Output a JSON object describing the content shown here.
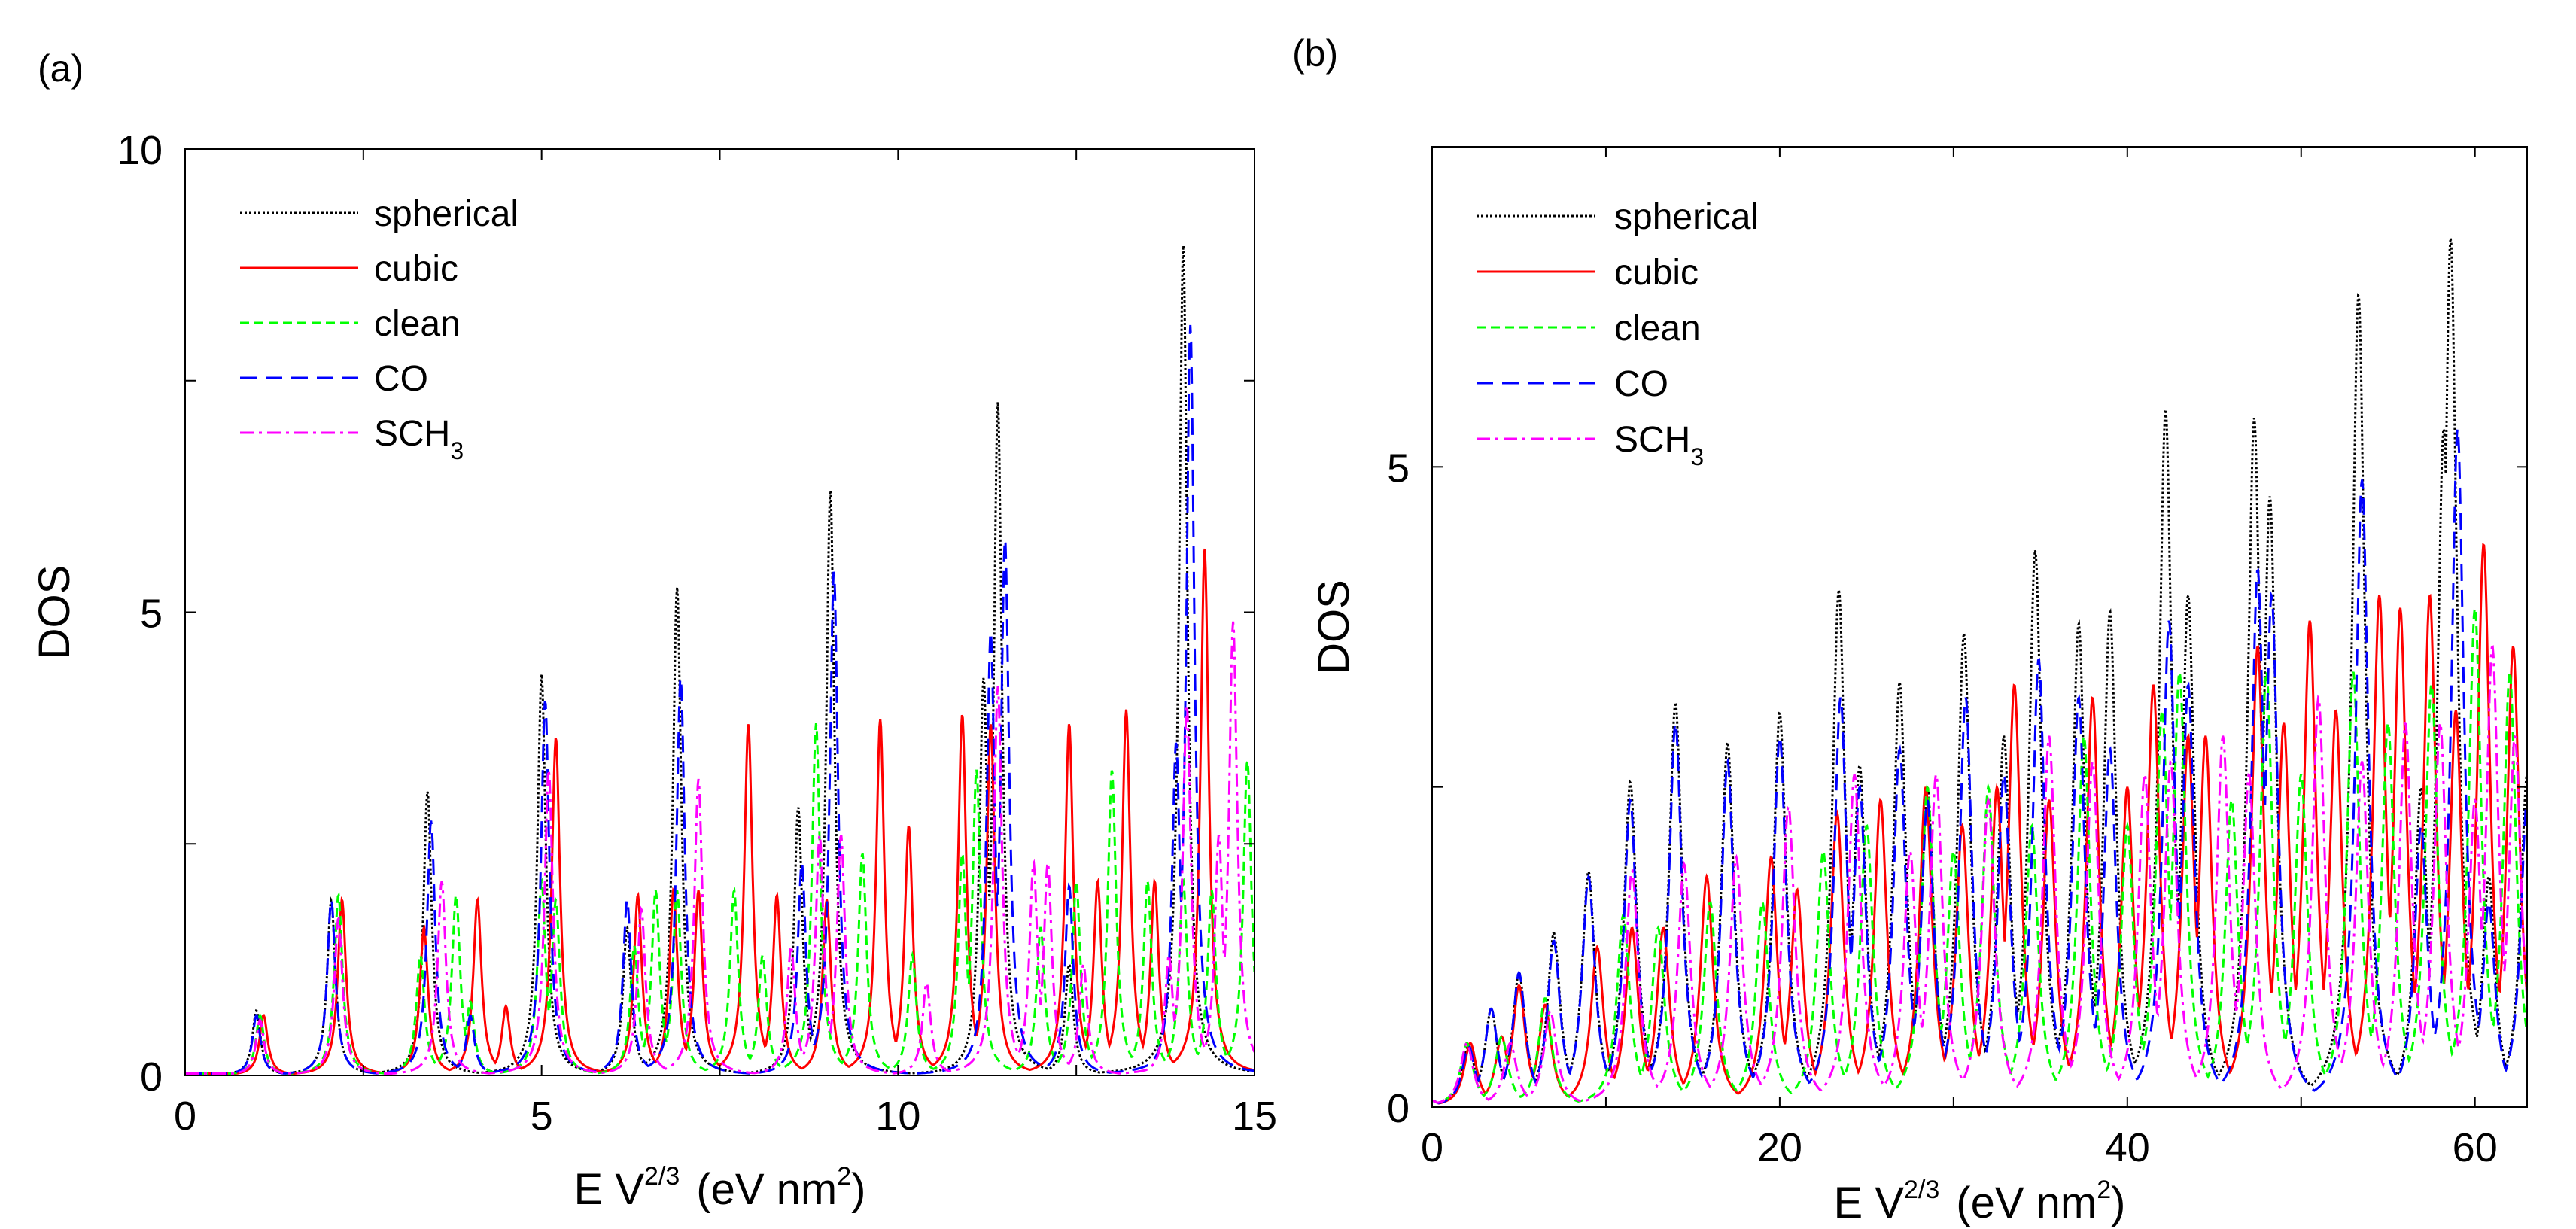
{
  "chart_data": [
    {
      "type": "line",
      "panel_label": "(a)",
      "xlabel": {
        "main": "E V",
        "sup": "2/3",
        "unit": "(eV nm",
        "unit_sup": "2",
        "close": ")"
      },
      "ylabel": "DOS",
      "xlim": [
        0,
        15
      ],
      "ylim": [
        0,
        10
      ],
      "xticks": [
        {
          "v": 0,
          "label": "0"
        },
        {
          "v": 5,
          "label": "5"
        },
        {
          "v": 10,
          "label": "10"
        },
        {
          "v": 15,
          "label": "15"
        }
      ],
      "xminor": [
        2.5,
        7.5,
        12.5
      ],
      "yticks": [
        {
          "v": 0,
          "label": "0"
        },
        {
          "v": 5,
          "label": "5"
        },
        {
          "v": 10,
          "label": "10"
        }
      ],
      "yminor": [
        2.5,
        7.5
      ],
      "peak_width": 0.07,
      "legend_position": "top-left",
      "series": [
        {
          "name": "spherical",
          "sub": "",
          "color": "#000000",
          "style": "dotted",
          "peaks": [
            [
              1.0,
              0.7
            ],
            [
              2.05,
              1.9
            ],
            [
              3.4,
              3.07
            ],
            [
              5.0,
              4.34
            ],
            [
              6.2,
              1.6
            ],
            [
              6.9,
              5.27
            ],
            [
              8.6,
              2.9
            ],
            [
              9.05,
              6.33
            ],
            [
              11.2,
              4.3
            ],
            [
              11.4,
              7.27
            ],
            [
              12.4,
              1.2
            ],
            [
              14.0,
              8.98
            ]
          ]
        },
        {
          "name": "cubic",
          "sub": "",
          "color": "#ff0000",
          "style": "solid",
          "peaks": [
            [
              1.1,
              0.65
            ],
            [
              2.2,
              1.9
            ],
            [
              3.35,
              1.6
            ],
            [
              4.1,
              1.9
            ],
            [
              4.5,
              0.75
            ],
            [
              5.2,
              3.65
            ],
            [
              6.35,
              1.95
            ],
            [
              6.85,
              2.0
            ],
            [
              7.2,
              2.0
            ],
            [
              7.9,
              3.8
            ],
            [
              8.3,
              1.95
            ],
            [
              9.0,
              1.9
            ],
            [
              9.75,
              3.85
            ],
            [
              10.15,
              2.7
            ],
            [
              10.9,
              3.9
            ],
            [
              11.3,
              3.8
            ],
            [
              12.4,
              3.8
            ],
            [
              12.8,
              2.1
            ],
            [
              13.2,
              3.95
            ],
            [
              13.6,
              2.1
            ],
            [
              14.3,
              5.7
            ]
          ]
        },
        {
          "name": "clean",
          "sub": "",
          "color": "#00ff00",
          "style": "dashed",
          "peaks": [
            [
              1.05,
              0.65
            ],
            [
              2.15,
              1.95
            ],
            [
              3.3,
              1.3
            ],
            [
              3.8,
              1.95
            ],
            [
              4.0,
              0.8
            ],
            [
              5.0,
              2.1
            ],
            [
              5.2,
              1.9
            ],
            [
              6.3,
              1.4
            ],
            [
              6.6,
              2.0
            ],
            [
              6.9,
              2.0
            ],
            [
              7.7,
              2.0
            ],
            [
              8.1,
              1.3
            ],
            [
              8.85,
              3.8
            ],
            [
              9.5,
              2.4
            ],
            [
              10.2,
              1.3
            ],
            [
              10.9,
              2.4
            ],
            [
              11.1,
              3.3
            ],
            [
              12.0,
              1.6
            ],
            [
              12.5,
              2.1
            ],
            [
              13.0,
              3.3
            ],
            [
              13.5,
              2.1
            ],
            [
              14.0,
              2.1
            ],
            [
              14.4,
              2.0
            ],
            [
              14.9,
              3.4
            ]
          ]
        },
        {
          "name": "CO",
          "sub": "",
          "color": "#0000ff",
          "style": "longdash",
          "peaks": [
            [
              1.0,
              0.65
            ],
            [
              2.05,
              1.9
            ],
            [
              3.45,
              2.75
            ],
            [
              4.0,
              0.65
            ],
            [
              5.05,
              4.05
            ],
            [
              6.2,
              1.9
            ],
            [
              6.95,
              4.3
            ],
            [
              8.65,
              2.3
            ],
            [
              9.1,
              5.45
            ],
            [
              11.3,
              4.8
            ],
            [
              11.5,
              5.8
            ],
            [
              12.4,
              2.05
            ],
            [
              13.9,
              3.6
            ],
            [
              14.1,
              8.1
            ]
          ]
        },
        {
          "name": "SCH",
          "sub": "3",
          "color": "#ff00ff",
          "style": "dashdot",
          "peaks": [
            [
              1.05,
              0.6
            ],
            [
              2.15,
              1.7
            ],
            [
              3.6,
              2.1
            ],
            [
              5.1,
              3.3
            ],
            [
              6.4,
              1.8
            ],
            [
              7.2,
              3.2
            ],
            [
              8.5,
              1.4
            ],
            [
              8.9,
              2.6
            ],
            [
              9.2,
              2.6
            ],
            [
              10.4,
              1.0
            ],
            [
              11.4,
              4.2
            ],
            [
              11.9,
              2.3
            ],
            [
              12.1,
              2.3
            ],
            [
              12.6,
              1.2
            ],
            [
              13.8,
              1.3
            ],
            [
              14.05,
              4.0
            ],
            [
              14.5,
              2.6
            ],
            [
              14.7,
              4.9
            ]
          ]
        }
      ]
    },
    {
      "type": "line",
      "panel_label": "(b)",
      "xlabel": {
        "main": "E V",
        "sup": "2/3",
        "unit": "(eV nm",
        "unit_sup": "2",
        "close": ")"
      },
      "ylabel": "DOS",
      "xlim": [
        0,
        63
      ],
      "ylim": [
        0,
        7.5
      ],
      "xticks": [
        {
          "v": 0,
          "label": "0"
        },
        {
          "v": 20,
          "label": "20"
        },
        {
          "v": 40,
          "label": "40"
        },
        {
          "v": 60,
          "label": "60"
        }
      ],
      "xminor": [
        10,
        30,
        50
      ],
      "yticks": [
        {
          "v": 0,
          "label": "0"
        },
        {
          "v": 5,
          "label": "5"
        }
      ],
      "yminor": [
        2.5
      ],
      "peak_width": 0.45,
      "legend_position": "top-left",
      "series": [
        {
          "name": "spherical",
          "sub": "",
          "color": "#000000",
          "style": "dotted",
          "peaks": [
            [
              0,
              0.05
            ],
            [
              2.1,
              0.48
            ],
            [
              3.4,
              0.77
            ],
            [
              5,
              1.05
            ],
            [
              7,
              1.36
            ],
            [
              9,
              1.84
            ],
            [
              11.4,
              2.54
            ],
            [
              14,
              3.16
            ],
            [
              17,
              2.85
            ],
            [
              20,
              3.08
            ],
            [
              23.4,
              4.04
            ],
            [
              24.6,
              2.67
            ],
            [
              26.9,
              3.32
            ],
            [
              28.5,
              2.5
            ],
            [
              30.6,
              3.7
            ],
            [
              32.9,
              2.9
            ],
            [
              34.7,
              4.35
            ],
            [
              37.2,
              3.78
            ],
            [
              39.0,
              3.87
            ],
            [
              42.2,
              5.45
            ],
            [
              43.5,
              4.0
            ],
            [
              47.3,
              5.38
            ],
            [
              48.2,
              4.77
            ],
            [
              53.3,
              6.35
            ],
            [
              56.9,
              2.5
            ],
            [
              58.2,
              5.3
            ],
            [
              58.6,
              6.79
            ],
            [
              60.8,
              1.8
            ],
            [
              63,
              2.6
            ]
          ]
        },
        {
          "name": "cubic",
          "sub": "",
          "color": "#ff0000",
          "style": "solid",
          "peaks": [
            [
              0,
              0.05
            ],
            [
              2.2,
              0.5
            ],
            [
              4,
              0.55
            ],
            [
              5,
              0.95
            ],
            [
              6.5,
              0.8
            ],
            [
              9.5,
              1.25
            ],
            [
              11.5,
              1.4
            ],
            [
              13.3,
              1.4
            ],
            [
              15.8,
              1.8
            ],
            [
              19.5,
              1.95
            ],
            [
              21,
              1.7
            ],
            [
              23.3,
              2.3
            ],
            [
              25.8,
              2.4
            ],
            [
              28.4,
              2.5
            ],
            [
              30.5,
              2.2
            ],
            [
              32.5,
              2.5
            ],
            [
              33.5,
              3.3
            ],
            [
              35.5,
              2.4
            ],
            [
              38,
              3.2
            ],
            [
              40,
              2.5
            ],
            [
              41.5,
              3.3
            ],
            [
              43.5,
              2.9
            ],
            [
              44.5,
              2.9
            ],
            [
              47.5,
              3.6
            ],
            [
              49,
              3.0
            ],
            [
              50.5,
              3.8
            ],
            [
              52,
              3.1
            ],
            [
              54.5,
              4.0
            ],
            [
              55.7,
              3.9
            ],
            [
              57.4,
              4.0
            ],
            [
              58.9,
              3.1
            ],
            [
              60.5,
              4.4
            ],
            [
              62.2,
              3.6
            ]
          ]
        },
        {
          "name": "clean",
          "sub": "",
          "color": "#00ff00",
          "style": "dashed",
          "peaks": [
            [
              0,
              0.05
            ],
            [
              2,
              0.5
            ],
            [
              4,
              0.55
            ],
            [
              6.5,
              0.85
            ],
            [
              11,
              1.5
            ],
            [
              13,
              1.4
            ],
            [
              16,
              1.6
            ],
            [
              19,
              1.6
            ],
            [
              22.5,
              2.0
            ],
            [
              25,
              2.2
            ],
            [
              28.5,
              2.5
            ],
            [
              30,
              2.0
            ],
            [
              32,
              2.5
            ],
            [
              34.5,
              2.2
            ],
            [
              37.5,
              2.9
            ],
            [
              40,
              2.2
            ],
            [
              42,
              3.1
            ],
            [
              43,
              3.4
            ],
            [
              46,
              2.4
            ],
            [
              48,
              3.4
            ],
            [
              50,
              2.6
            ],
            [
              53,
              3.4
            ],
            [
              55,
              3.0
            ],
            [
              57.5,
              3.3
            ],
            [
              60,
              3.9
            ],
            [
              62,
              3.4
            ]
          ]
        },
        {
          "name": "CO",
          "sub": "",
          "color": "#0000ff",
          "style": "longdash",
          "peaks": [
            [
              0,
              0.05
            ],
            [
              2.1,
              0.48
            ],
            [
              3.4,
              0.77
            ],
            [
              5,
              1.05
            ],
            [
              7,
              1.3
            ],
            [
              9,
              1.8
            ],
            [
              11.4,
              2.4
            ],
            [
              14,
              3.0
            ],
            [
              17,
              2.7
            ],
            [
              20,
              2.9
            ],
            [
              23.5,
              3.2
            ],
            [
              24.6,
              2.5
            ],
            [
              26.9,
              2.8
            ],
            [
              28.5,
              2.4
            ],
            [
              30.7,
              3.2
            ],
            [
              32.9,
              2.6
            ],
            [
              34.9,
              3.5
            ],
            [
              37.2,
              3.2
            ],
            [
              39.0,
              2.8
            ],
            [
              42.4,
              3.8
            ],
            [
              43.5,
              3.3
            ],
            [
              47.5,
              4.2
            ],
            [
              48.3,
              4.0
            ],
            [
              53.5,
              4.9
            ],
            [
              56.9,
              2.2
            ],
            [
              59,
              5.3
            ],
            [
              60.8,
              1.6
            ],
            [
              63,
              2.4
            ]
          ]
        },
        {
          "name": "SCH",
          "sub": "3",
          "color": "#ff00ff",
          "style": "dashdot",
          "peaks": [
            [
              0,
              0.05
            ],
            [
              2,
              0.5
            ],
            [
              4.5,
              0.5
            ],
            [
              6.8,
              0.75
            ],
            [
              11.5,
              1.85
            ],
            [
              14.5,
              1.9
            ],
            [
              17.5,
              1.95
            ],
            [
              20.5,
              2.35
            ],
            [
              24.3,
              2.6
            ],
            [
              27.5,
              2.0
            ],
            [
              29,
              2.6
            ],
            [
              32,
              2.4
            ],
            [
              35.5,
              2.9
            ],
            [
              38,
              2.7
            ],
            [
              41,
              2.6
            ],
            [
              42.5,
              2.7
            ],
            [
              45.5,
              2.9
            ],
            [
              47,
              2.6
            ],
            [
              51,
              3.2
            ],
            [
              53.5,
              2.7
            ],
            [
              56,
              3.0
            ],
            [
              58,
              3.0
            ],
            [
              60,
              2.4
            ],
            [
              61,
              3.6
            ],
            [
              62.3,
              2.9
            ]
          ]
        }
      ]
    }
  ]
}
